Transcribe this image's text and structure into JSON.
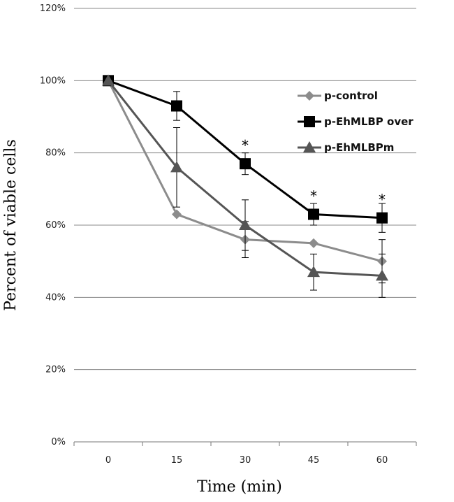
{
  "chart_data": {
    "type": "line",
    "xlabel": "Time (min)",
    "ylabel": "Percent of viable cells",
    "categories": [
      "0",
      "15",
      "30",
      "45",
      "60"
    ],
    "x": [
      0,
      15,
      30,
      45,
      60
    ],
    "ylim": [
      0,
      120
    ],
    "y_ticks": [
      "0%",
      "20%",
      "40%",
      "60%",
      "80%",
      "100%",
      "120%"
    ],
    "y_tick_values": [
      0,
      20,
      40,
      60,
      80,
      100,
      120
    ],
    "grid": "horizontal",
    "legend_position": "top-right",
    "series": [
      {
        "name": "p-control",
        "marker": "diamond",
        "color": "#8c8c8c",
        "values": [
          100,
          63,
          56,
          55,
          50
        ],
        "error": [
          0,
          0,
          5,
          0,
          6
        ]
      },
      {
        "name": "p-EhMLBP over",
        "marker": "square",
        "color": "#000000",
        "values": [
          100,
          93,
          77,
          63,
          62
        ],
        "error": [
          0,
          4,
          3,
          3,
          4
        ]
      },
      {
        "name": "p-EhMLBPm",
        "marker": "triangle",
        "color": "#555555",
        "values": [
          100,
          76,
          60,
          47,
          46
        ],
        "error": [
          0,
          11,
          7,
          5,
          6
        ]
      }
    ],
    "annotations": [
      {
        "text": "*",
        "x": 30,
        "y": 83
      },
      {
        "text": "*",
        "x": 45,
        "y": 69
      },
      {
        "text": "*",
        "x": 60,
        "y": 68
      }
    ]
  }
}
